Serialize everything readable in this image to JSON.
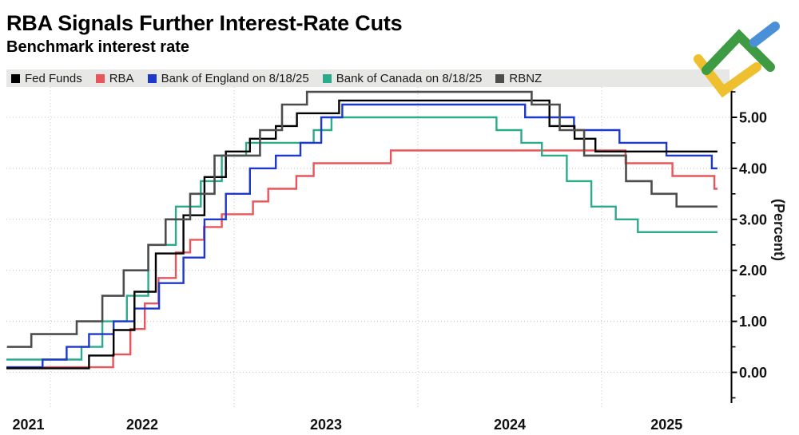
{
  "header": {
    "title": "RBA Signals Further Interest-Rate Cuts",
    "subtitle": "Benchmark interest rate"
  },
  "logo": {
    "name": "litefinance-logo",
    "green": "#3e9b44",
    "blue": "#4a90d9",
    "yellow": "#eec02f"
  },
  "chart_data": {
    "type": "line",
    "subtype": "step-after",
    "title": "RBA Signals Further Interest-Rate Cuts",
    "subtitle": "Benchmark interest rate",
    "ylabel": "(Percent)",
    "ylim": [
      -0.6,
      5.65
    ],
    "grid": "dotted",
    "legend_position": "top-left",
    "y_ticks_major": [
      {
        "v": 0,
        "label": "0.00"
      },
      {
        "v": 1,
        "label": "1.00"
      },
      {
        "v": 2,
        "label": "2.00"
      },
      {
        "v": 3,
        "label": "3.00"
      },
      {
        "v": 4,
        "label": "4.00"
      },
      {
        "v": 5,
        "label": "5.00"
      }
    ],
    "y_ticks_minor": [
      -0.5,
      0.5,
      1.5,
      2.5,
      3.5,
      4.5,
      5.5
    ],
    "x_labels": [
      "2021",
      "2022",
      "2023",
      "2024",
      "2025"
    ],
    "x_gridline_years": [
      2022,
      2023,
      2024,
      2025
    ],
    "x_start": "2021-10-05",
    "x_end": "2025-08-18",
    "series": [
      {
        "name": "Fed Funds",
        "color": "#000000",
        "points": [
          [
            "2021-10-05",
            0.08
          ],
          [
            "2022-03-17",
            0.33
          ],
          [
            "2022-05-05",
            0.83
          ],
          [
            "2022-06-16",
            1.58
          ],
          [
            "2022-07-28",
            2.33
          ],
          [
            "2022-09-22",
            3.08
          ],
          [
            "2022-11-03",
            3.83
          ],
          [
            "2022-12-15",
            4.33
          ],
          [
            "2023-02-02",
            4.58
          ],
          [
            "2023-03-23",
            4.83
          ],
          [
            "2023-05-04",
            5.08
          ],
          [
            "2023-07-27",
            5.33
          ],
          [
            "2024-09-19",
            4.83
          ],
          [
            "2024-11-08",
            4.58
          ],
          [
            "2024-12-19",
            4.33
          ]
        ]
      },
      {
        "name": "RBA",
        "color": "#e9555b",
        "points": [
          [
            "2021-10-05",
            0.1
          ],
          [
            "2022-05-04",
            0.35
          ],
          [
            "2022-06-08",
            0.85
          ],
          [
            "2022-07-06",
            1.35
          ],
          [
            "2022-08-03",
            1.85
          ],
          [
            "2022-09-07",
            2.35
          ],
          [
            "2022-10-05",
            2.6
          ],
          [
            "2022-11-02",
            2.85
          ],
          [
            "2022-12-07",
            3.1
          ],
          [
            "2023-02-08",
            3.35
          ],
          [
            "2023-03-08",
            3.6
          ],
          [
            "2023-05-03",
            3.85
          ],
          [
            "2023-06-07",
            4.1
          ],
          [
            "2023-11-08",
            4.35
          ],
          [
            "2025-02-18",
            4.1
          ],
          [
            "2025-05-20",
            3.85
          ],
          [
            "2025-08-12",
            3.6
          ]
        ]
      },
      {
        "name": "Bank of England on 8/18/25",
        "color": "#1d38cb",
        "points": [
          [
            "2021-10-05",
            0.1
          ],
          [
            "2021-12-16",
            0.25
          ],
          [
            "2022-02-03",
            0.5
          ],
          [
            "2022-03-17",
            0.75
          ],
          [
            "2022-05-05",
            1.0
          ],
          [
            "2022-06-16",
            1.25
          ],
          [
            "2022-08-04",
            1.75
          ],
          [
            "2022-09-22",
            2.25
          ],
          [
            "2022-11-03",
            3.0
          ],
          [
            "2022-12-15",
            3.5
          ],
          [
            "2023-02-02",
            4.0
          ],
          [
            "2023-03-23",
            4.25
          ],
          [
            "2023-05-11",
            4.5
          ],
          [
            "2023-06-22",
            5.0
          ],
          [
            "2023-08-03",
            5.25
          ],
          [
            "2024-08-01",
            5.0
          ],
          [
            "2024-11-07",
            4.75
          ],
          [
            "2025-02-06",
            4.5
          ],
          [
            "2025-05-08",
            4.25
          ],
          [
            "2025-08-07",
            4.0
          ]
        ]
      },
      {
        "name": "Bank of Canada on 8/18/25",
        "color": "#2bab8c",
        "points": [
          [
            "2021-10-05",
            0.25
          ],
          [
            "2022-03-02",
            0.5
          ],
          [
            "2022-04-13",
            1.0
          ],
          [
            "2022-06-01",
            1.5
          ],
          [
            "2022-07-13",
            2.5
          ],
          [
            "2022-09-07",
            3.25
          ],
          [
            "2022-10-26",
            3.75
          ],
          [
            "2022-12-07",
            4.25
          ],
          [
            "2023-01-25",
            4.5
          ],
          [
            "2023-06-07",
            4.75
          ],
          [
            "2023-07-12",
            5.0
          ],
          [
            "2024-06-05",
            4.75
          ],
          [
            "2024-07-24",
            4.5
          ],
          [
            "2024-09-04",
            4.25
          ],
          [
            "2024-10-23",
            3.75
          ],
          [
            "2024-12-11",
            3.25
          ],
          [
            "2025-01-29",
            3.0
          ],
          [
            "2025-03-12",
            2.75
          ]
        ]
      },
      {
        "name": "RBNZ",
        "color": "#4d4d4d",
        "points": [
          [
            "2021-10-06",
            0.5
          ],
          [
            "2021-11-24",
            0.75
          ],
          [
            "2022-02-23",
            1.0
          ],
          [
            "2022-04-13",
            1.5
          ],
          [
            "2022-05-25",
            2.0
          ],
          [
            "2022-07-13",
            2.5
          ],
          [
            "2022-08-17",
            3.0
          ],
          [
            "2022-10-05",
            3.5
          ],
          [
            "2022-11-23",
            4.25
          ],
          [
            "2023-02-22",
            4.75
          ],
          [
            "2023-04-05",
            5.25
          ],
          [
            "2023-05-24",
            5.5
          ],
          [
            "2024-08-14",
            5.25
          ],
          [
            "2024-10-09",
            4.75
          ],
          [
            "2024-11-27",
            4.25
          ],
          [
            "2025-02-19",
            3.75
          ],
          [
            "2025-04-09",
            3.5
          ],
          [
            "2025-05-28",
            3.25
          ]
        ]
      }
    ]
  }
}
